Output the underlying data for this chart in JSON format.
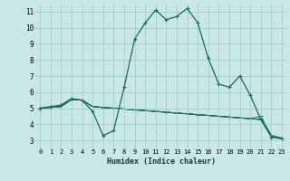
{
  "xlabel": "Humidex (Indice chaleur)",
  "background_color": "#c8e8e4",
  "grid_color": "#a0c8c4",
  "line_color": "#1a6b5a",
  "xlim": [
    -0.5,
    23.5
  ],
  "ylim": [
    2.5,
    11.5
  ],
  "xtick_labels": [
    "0",
    "1",
    "2",
    "3",
    "4",
    "5",
    "6",
    "7",
    "8",
    "9",
    "10",
    "11",
    "12",
    "13",
    "14",
    "15",
    "16",
    "17",
    "18",
    "19",
    "20",
    "21",
    "22",
    "23"
  ],
  "ytick_labels": [
    "3",
    "4",
    "5",
    "6",
    "7",
    "8",
    "9",
    "10",
    "11"
  ],
  "ytick_vals": [
    3,
    4,
    5,
    6,
    7,
    8,
    9,
    10,
    11
  ],
  "series_main": [
    5.0,
    5.1,
    5.2,
    5.6,
    5.5,
    4.8,
    3.3,
    3.6,
    6.3,
    9.3,
    10.3,
    11.1,
    10.5,
    10.7,
    11.2,
    10.3,
    8.1,
    6.5,
    6.3,
    7.0,
    5.8,
    4.3,
    3.2,
    3.1
  ],
  "series_flat1": [
    5.0,
    5.05,
    5.1,
    5.55,
    5.5,
    5.1,
    5.05,
    5.0,
    4.95,
    4.9,
    4.85,
    4.8,
    4.75,
    4.7,
    4.65,
    4.6,
    4.55,
    4.5,
    4.45,
    4.4,
    4.35,
    4.5,
    3.3,
    3.15
  ],
  "series_flat2": [
    5.0,
    5.05,
    5.1,
    5.55,
    5.5,
    5.1,
    5.05,
    5.0,
    4.95,
    4.9,
    4.85,
    4.8,
    4.75,
    4.7,
    4.65,
    4.6,
    4.55,
    4.5,
    4.45,
    4.4,
    4.35,
    4.3,
    3.3,
    3.1
  ],
  "series_flat3": [
    5.0,
    5.05,
    5.1,
    5.55,
    5.5,
    5.1,
    5.05,
    5.0,
    4.95,
    4.9,
    4.85,
    4.8,
    4.75,
    4.7,
    4.65,
    4.6,
    4.55,
    4.5,
    4.45,
    4.4,
    4.35,
    4.3,
    3.3,
    3.1
  ],
  "series_flat4": [
    5.0,
    5.05,
    5.1,
    5.55,
    5.5,
    5.1,
    5.05,
    5.0,
    4.95,
    4.9,
    4.85,
    4.8,
    4.75,
    4.7,
    4.65,
    4.6,
    4.55,
    4.5,
    4.45,
    4.4,
    4.35,
    4.3,
    3.3,
    3.1
  ]
}
